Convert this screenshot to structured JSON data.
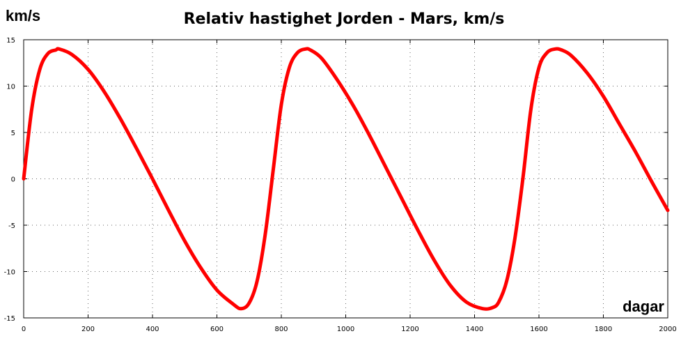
{
  "chart_data": {
    "type": "line",
    "title": "Relativ hastighet Jorden - Mars, km/s",
    "ylabel": "km/s",
    "xlabel": "dagar",
    "xlim": [
      0,
      2000
    ],
    "ylim": [
      -15,
      15
    ],
    "x_ticks": [
      0,
      200,
      400,
      600,
      800,
      1000,
      1200,
      1400,
      1600,
      1800,
      2000
    ],
    "y_ticks": [
      15,
      10,
      5,
      0,
      -5,
      -10,
      -15
    ],
    "grid": true,
    "series": [
      {
        "color": "#ff0000",
        "x": [
          0,
          25,
          50,
          75,
          100,
          110,
          150,
          200,
          250,
          300,
          350,
          400,
          450,
          500,
          550,
          600,
          650,
          675,
          700,
          725,
          750,
          775,
          800,
          825,
          850,
          875,
          890,
          925,
          975,
          1025,
          1075,
          1125,
          1175,
          1225,
          1275,
          1325,
          1375,
          1425,
          1455,
          1475,
          1500,
          1525,
          1550,
          1575,
          1600,
          1625,
          1650,
          1670,
          1700,
          1750,
          1800,
          1850,
          1900,
          1950,
          2000
        ],
        "values": [
          0,
          7.5,
          11.8,
          13.5,
          13.9,
          14.0,
          13.4,
          11.8,
          9.4,
          6.5,
          3.3,
          0,
          -3.4,
          -6.7,
          -9.6,
          -12.0,
          -13.5,
          -14.0,
          -13.4,
          -11.0,
          -6.0,
          1.0,
          8.0,
          12.0,
          13.6,
          14.0,
          13.9,
          13.0,
          10.6,
          7.8,
          4.6,
          1.2,
          -2.2,
          -5.6,
          -8.8,
          -11.5,
          -13.3,
          -14.0,
          -13.9,
          -13.3,
          -11.0,
          -6.5,
          0,
          7.5,
          12.0,
          13.6,
          14.0,
          13.9,
          13.3,
          11.4,
          8.9,
          5.9,
          2.9,
          -0.3,
          -3.4
        ]
      }
    ]
  }
}
